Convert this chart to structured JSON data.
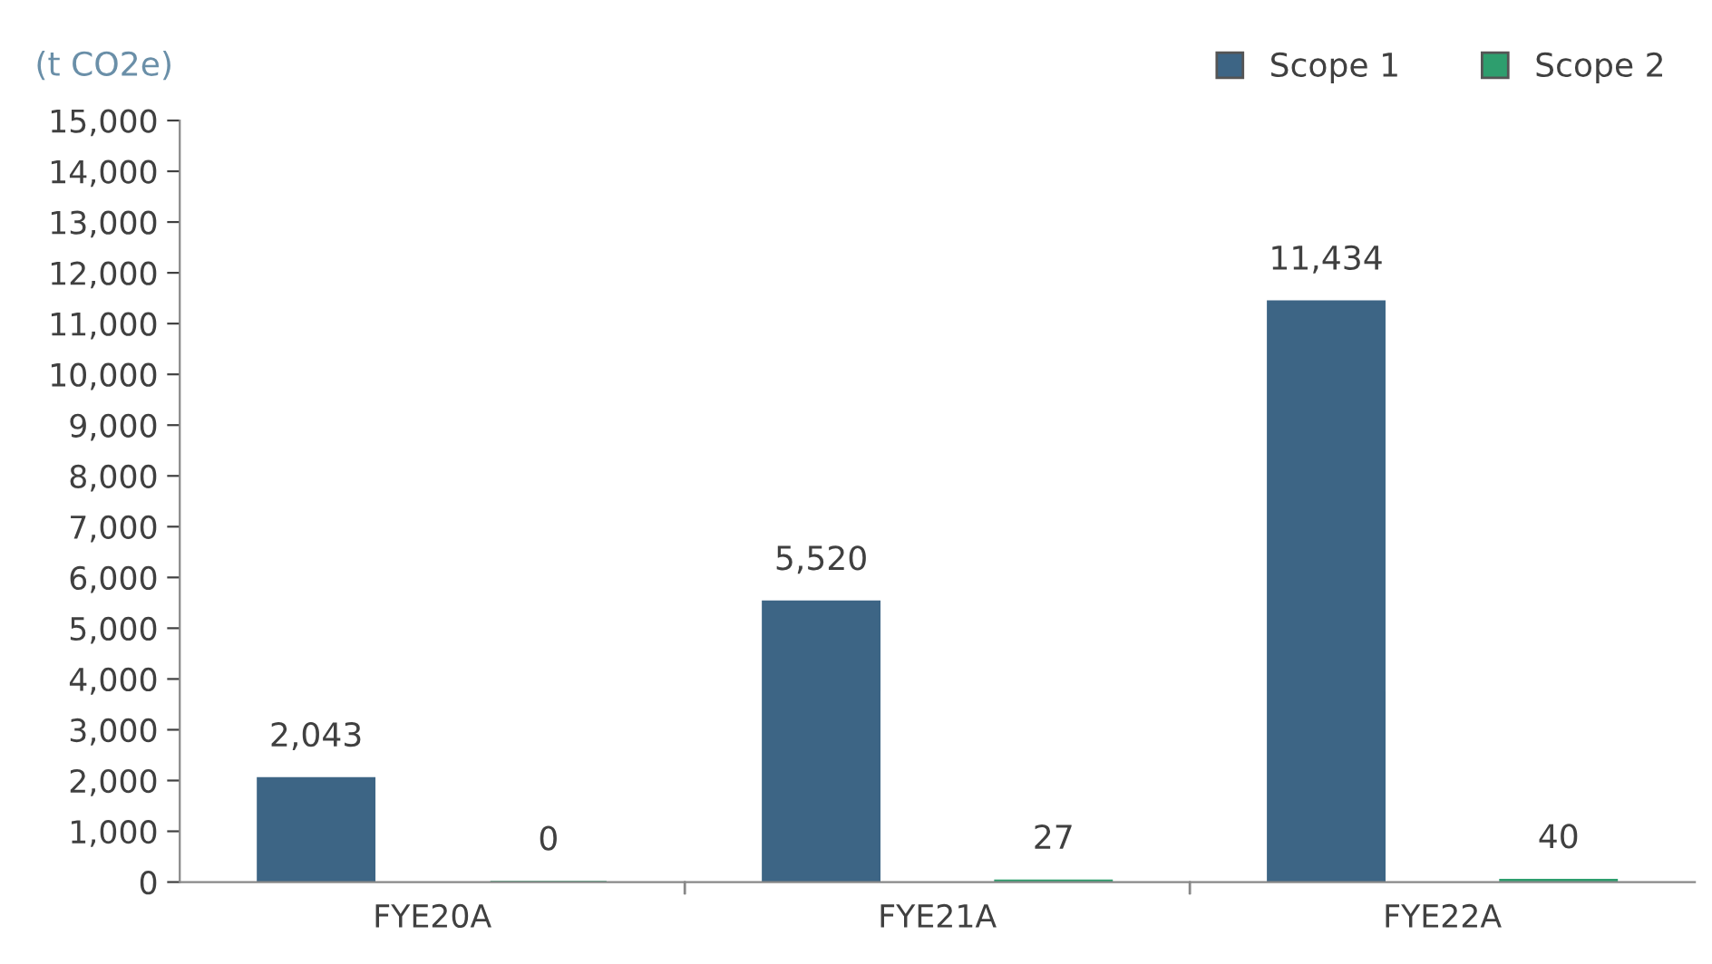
{
  "chart_data": {
    "type": "bar",
    "ylabel": "(t CO2e)",
    "categories": [
      "FYE20A",
      "FYE21A",
      "FYE22A"
    ],
    "series": [
      {
        "name": "Scope 1",
        "color": "#3d6585",
        "values": [
          2043,
          5520,
          11434
        ],
        "value_labels": [
          "2,043",
          "5,520",
          "11,434"
        ]
      },
      {
        "name": "Scope 2",
        "color": "#2e9e6e",
        "values": [
          0,
          27,
          40
        ],
        "value_labels": [
          "0",
          "27",
          "40"
        ]
      }
    ],
    "ylim": [
      0,
      15000
    ],
    "yticks": [
      0,
      {
        "value": 1000,
        "label": "1,000"
      },
      {
        "value": 2000,
        "label": "2,000"
      },
      {
        "value": 3000,
        "label": "3,000"
      },
      {
        "value": 4000,
        "label": "4,000"
      },
      {
        "value": 5000,
        "label": "5,000"
      },
      {
        "value": 6000,
        "label": "6,000"
      },
      {
        "value": 7000,
        "label": "7,000"
      },
      {
        "value": 8000,
        "label": "8,000"
      },
      {
        "value": 9000,
        "label": "9,000"
      },
      {
        "value": 10000,
        "label": "10,000"
      },
      {
        "value": 11000,
        "label": "11,000"
      },
      {
        "value": 12000,
        "label": "12,000"
      },
      {
        "value": 13000,
        "label": "13,000"
      },
      {
        "value": 14000,
        "label": "14,000"
      },
      {
        "value": 15000,
        "label": "15,000"
      }
    ],
    "legend": "top right",
    "grid": false
  }
}
